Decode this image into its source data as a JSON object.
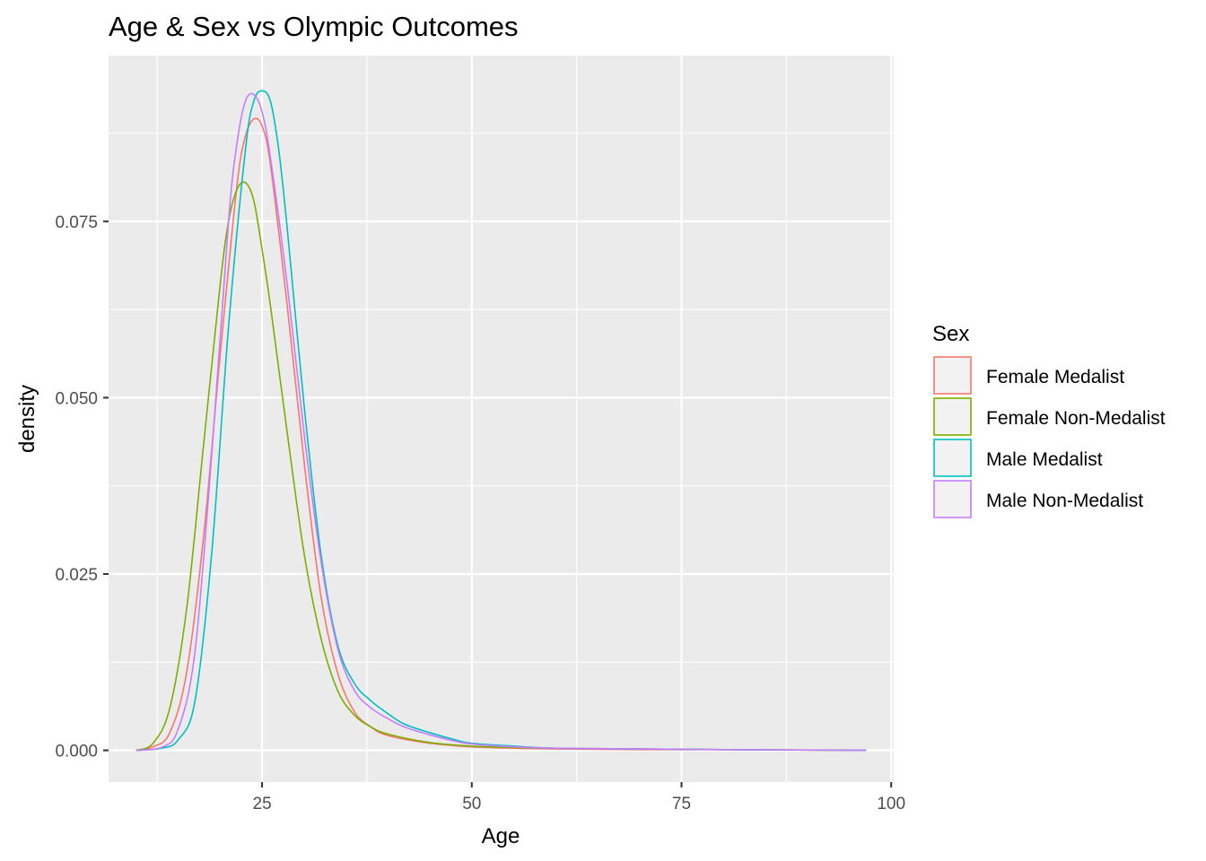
{
  "chart_data": {
    "type": "line",
    "title": "Age & Sex vs Olympic Outcomes",
    "xlabel": "Age",
    "ylabel": "density",
    "xlim": [
      6.7,
      100.3
    ],
    "ylim": [
      -0.0045,
      0.0985
    ],
    "xticks": [
      25,
      50,
      75,
      100
    ],
    "yticks": [
      0.0,
      0.025,
      0.05,
      0.075
    ],
    "ytick_labels": [
      "0.000",
      "0.025",
      "0.050",
      "0.075"
    ],
    "grid": true,
    "legend": {
      "title": "Sex",
      "position": "right"
    },
    "series": [
      {
        "name": "Female Medalist",
        "color": "#F8766D",
        "x": [
          10,
          12,
          14,
          16,
          18,
          20,
          22,
          23,
          24,
          25,
          26,
          28,
          30,
          32,
          34,
          36,
          38,
          40,
          45,
          50,
          55,
          60,
          70,
          80,
          97
        ],
        "y": [
          0.0,
          0.0005,
          0.0025,
          0.011,
          0.03,
          0.056,
          0.08,
          0.087,
          0.0895,
          0.0885,
          0.083,
          0.063,
          0.041,
          0.022,
          0.011,
          0.0055,
          0.0033,
          0.0021,
          0.001,
          0.0005,
          0.0003,
          0.0002,
          0.0001,
          0.0001,
          0.0
        ]
      },
      {
        "name": "Female Non-Medalist",
        "color": "#7CAE00",
        "x": [
          10,
          12,
          14,
          16,
          18,
          20,
          21,
          22,
          23,
          24,
          25,
          26,
          28,
          30,
          32,
          34,
          36,
          38,
          40,
          45,
          50,
          55,
          60,
          70,
          80,
          97
        ],
        "y": [
          0.0,
          0.001,
          0.006,
          0.02,
          0.043,
          0.066,
          0.075,
          0.0795,
          0.0805,
          0.078,
          0.071,
          0.063,
          0.045,
          0.028,
          0.016,
          0.0085,
          0.005,
          0.0033,
          0.0023,
          0.0011,
          0.0006,
          0.0004,
          0.0003,
          0.0002,
          0.0001,
          0.0
        ]
      },
      {
        "name": "Male Medalist",
        "color": "#00BFC4",
        "x": [
          10,
          13,
          15,
          17,
          19,
          21,
          23,
          24,
          25,
          26,
          27,
          28,
          30,
          32,
          34,
          36,
          38,
          40,
          42,
          45,
          48,
          50,
          55,
          60,
          70,
          80,
          97
        ],
        "y": [
          0.0,
          0.0003,
          0.0015,
          0.007,
          0.028,
          0.06,
          0.085,
          0.092,
          0.0935,
          0.092,
          0.085,
          0.074,
          0.049,
          0.028,
          0.015,
          0.0095,
          0.007,
          0.0052,
          0.0037,
          0.0025,
          0.0015,
          0.001,
          0.0006,
          0.0003,
          0.0002,
          0.0001,
          0.0
        ]
      },
      {
        "name": "Male Non-Medalist",
        "color": "#C77CFF",
        "x": [
          10,
          13,
          15,
          17,
          19,
          21,
          22,
          23,
          24,
          25,
          26,
          28,
          30,
          32,
          34,
          36,
          38,
          40,
          42,
          45,
          48,
          50,
          55,
          60,
          70,
          80,
          97
        ],
        "y": [
          0.0,
          0.0004,
          0.003,
          0.014,
          0.042,
          0.075,
          0.086,
          0.092,
          0.093,
          0.0905,
          0.084,
          0.066,
          0.045,
          0.027,
          0.0145,
          0.0085,
          0.006,
          0.0045,
          0.0033,
          0.0022,
          0.0013,
          0.0009,
          0.0005,
          0.0003,
          0.0002,
          0.0001,
          0.0
        ]
      }
    ]
  }
}
